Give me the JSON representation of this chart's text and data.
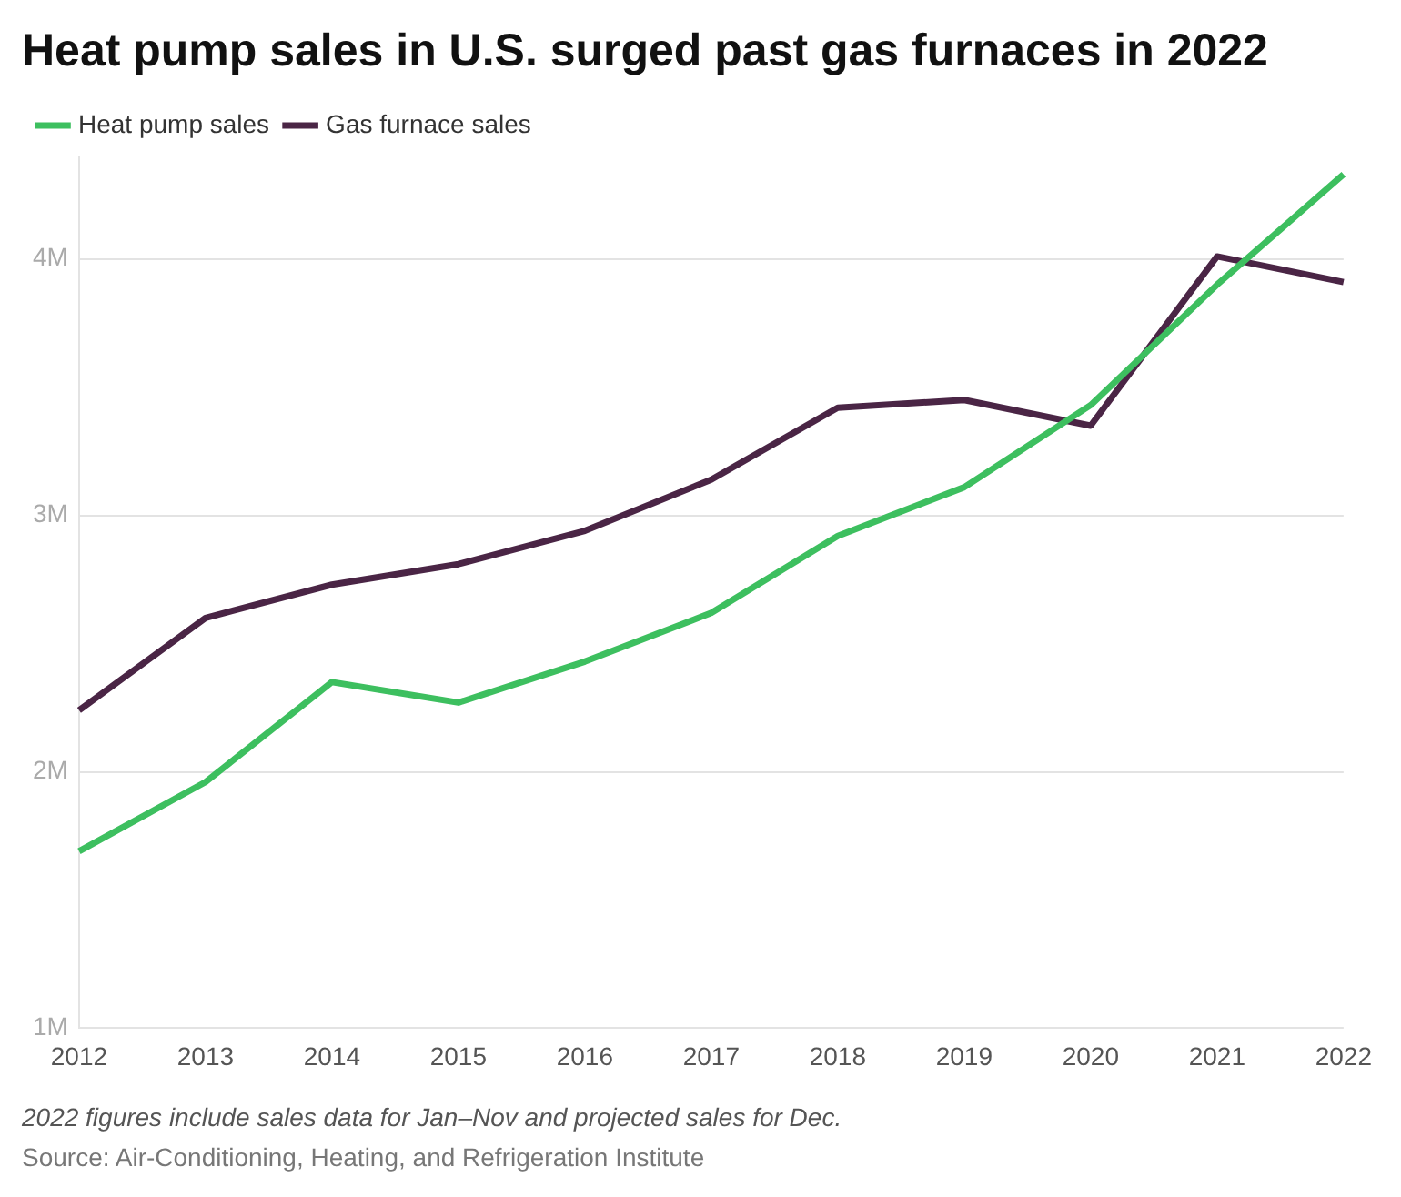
{
  "chart_data": {
    "type": "line",
    "title": "Heat pump sales in U.S. surged past gas furnaces in 2022",
    "categories": [
      "2012",
      "2013",
      "2014",
      "2015",
      "2016",
      "2017",
      "2018",
      "2019",
      "2020",
      "2021",
      "2022"
    ],
    "series": [
      {
        "name": "Heat pump sales",
        "color": "#3dbf5f",
        "values": [
          1.69,
          1.96,
          2.35,
          2.27,
          2.43,
          2.62,
          2.92,
          3.11,
          3.43,
          3.9,
          4.33
        ]
      },
      {
        "name": "Gas furnace sales",
        "color": "#4a2545",
        "values": [
          2.24,
          2.6,
          2.73,
          2.81,
          2.94,
          3.14,
          3.42,
          3.45,
          3.35,
          4.01,
          3.91
        ]
      }
    ],
    "ylim": [
      1,
      4.4
    ],
    "yticks": [
      {
        "value": 1,
        "label": "1M"
      },
      {
        "value": 2,
        "label": "2M"
      },
      {
        "value": 3,
        "label": "3M"
      },
      {
        "value": 4,
        "label": "4M"
      }
    ],
    "grid": "y",
    "legend": "top left",
    "marker": "none",
    "line_style": "solid",
    "annotations": [
      "2022 figures include sales data for Jan–Nov and projected sales for Dec.",
      "Source: Air-Conditioning, Heating, and Refrigeration Institute"
    ]
  }
}
